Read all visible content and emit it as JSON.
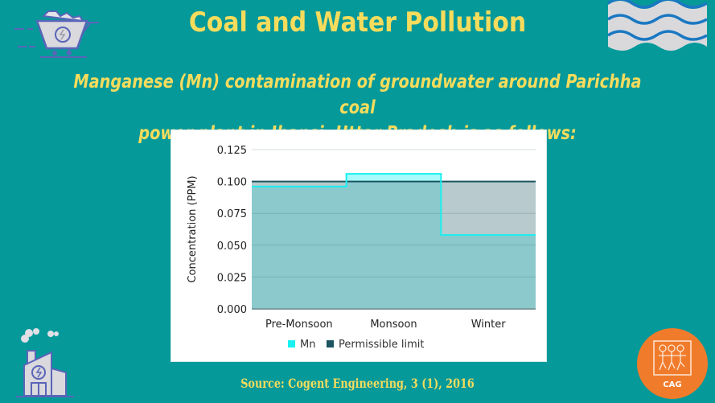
{
  "header": {
    "title": "Coal and Water Pollution",
    "subtitle_line1": "Manganese (Mn) contamination of groundwater around Parichha coal",
    "subtitle_line2": "power plant in Jhansi, Uttar Pradesh is as follows:"
  },
  "footer": {
    "source": "Source: Cogent Engineering, 3 (1), 2016",
    "logo_text": "CAG"
  },
  "icons": {
    "top_left": "coal-cart-icon",
    "top_right": "water-waves-icon",
    "bottom_left": "power-plant-icon",
    "bottom_right": "cag-logo-icon"
  },
  "colors": {
    "background": "#05999a",
    "title": "#f6dc5c",
    "mn_line": "#19f0f0",
    "mn_fill": "#82c9cc",
    "limit_line": "#1a5560",
    "limit_fill": "#b8cacd",
    "logo": "#f07b2b"
  },
  "chart_data": {
    "type": "area",
    "subtype": "step",
    "title": "",
    "xlabel": "",
    "ylabel": "Concentration (PPM)",
    "categories": [
      "Pre-Monsoon",
      "Monsoon",
      "Winter"
    ],
    "series": [
      {
        "name": "Mn",
        "values": [
          0.096,
          0.106,
          0.058
        ],
        "color": "#19f0f0"
      },
      {
        "name": "Permissible limit",
        "values": [
          0.1,
          0.1,
          0.1
        ],
        "color": "#1a5560"
      }
    ],
    "yticks": [
      "0.000",
      "0.025",
      "0.050",
      "0.075",
      "0.100",
      "0.125"
    ],
    "ylim": [
      0,
      0.125
    ],
    "grid": true,
    "legend_position": "bottom"
  }
}
